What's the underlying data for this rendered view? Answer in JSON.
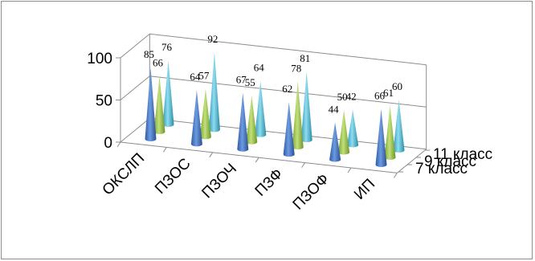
{
  "chart_data": {
    "type": "bar",
    "subtype": "3d-cone",
    "categories": [
      "ОКСЛП",
      "ПЗОС",
      "ПЗОЧ",
      "ПЗФ",
      "ПЗОФ",
      "ИП"
    ],
    "series": [
      {
        "name": "7 класс",
        "values": [
          85,
          64,
          67,
          62,
          44,
          66
        ],
        "color": "#3F6FBF"
      },
      {
        "name": "9 класс",
        "values": [
          66,
          57,
          55,
          78,
          50,
          61
        ],
        "color": "#8DB83A"
      },
      {
        "name": "11 класс",
        "values": [
          76,
          92,
          64,
          81,
          42,
          60
        ],
        "color": "#3AAECB"
      }
    ],
    "y_ticks": [
      "0",
      "50",
      "100"
    ],
    "ylim": [
      0,
      100
    ],
    "grid": true
  }
}
